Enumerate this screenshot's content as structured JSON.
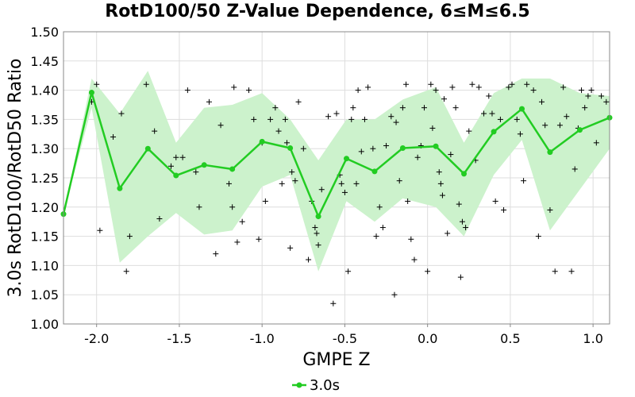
{
  "chart_data": {
    "type": "line",
    "title": "RotD100/50 Z-Value Dependence, 6≤M≤6.5",
    "xlabel": "GMPE Z",
    "ylabel": "3.0s RotD100/RotD50 Ratio",
    "xlim": [
      -2.2,
      1.1
    ],
    "ylim": [
      1.0,
      1.5
    ],
    "xticks": [
      -2.0,
      -1.5,
      -1.0,
      -0.5,
      0.0,
      0.5,
      1.0
    ],
    "xtick_labels": [
      "-2.0",
      "-1.5",
      "-1.0",
      "-0.5",
      "0.0",
      "0.5",
      "1.0"
    ],
    "yticks": [
      1.0,
      1.05,
      1.1,
      1.15,
      1.2,
      1.25,
      1.3,
      1.35,
      1.4,
      1.45,
      1.5
    ],
    "ytick_labels": [
      "1.00",
      "1.05",
      "1.10",
      "1.15",
      "1.20",
      "1.25",
      "1.30",
      "1.35",
      "1.40",
      "1.45",
      "1.50"
    ],
    "grid": true,
    "legend": "bottom-center",
    "colors": {
      "series": "#22cc22",
      "band": "#ccf2cc",
      "scatter": "#000000",
      "grid": "#dddddd"
    },
    "series": [
      {
        "name": "3.0s",
        "x": [
          -2.2,
          -2.03,
          -1.86,
          -1.69,
          -1.52,
          -1.35,
          -1.18,
          -1.0,
          -0.83,
          -0.66,
          -0.49,
          -0.32,
          -0.15,
          0.05,
          0.22,
          0.4,
          0.57,
          0.74,
          0.92,
          1.1
        ],
        "y": [
          1.188,
          1.396,
          1.232,
          1.3,
          1.254,
          1.272,
          1.265,
          1.312,
          1.301,
          1.184,
          1.283,
          1.261,
          1.301,
          1.304,
          1.257,
          1.329,
          1.368,
          1.294,
          1.332,
          1.353
        ]
      }
    ],
    "band": {
      "upper": [
        1.188,
        1.42,
        1.36,
        1.433,
        1.31,
        1.37,
        1.375,
        1.395,
        1.35,
        1.28,
        1.35,
        1.35,
        1.384,
        1.405,
        1.31,
        1.395,
        1.42,
        1.42,
        1.395,
        1.39
      ],
      "lower": [
        1.188,
        1.37,
        1.105,
        1.15,
        1.19,
        1.153,
        1.16,
        1.235,
        1.255,
        1.09,
        1.21,
        1.175,
        1.215,
        1.2,
        1.15,
        1.255,
        1.315,
        1.16,
        1.23,
        1.3
      ]
    },
    "scatter": {
      "x": [
        -2.03,
        -2.0,
        -1.98,
        -1.9,
        -1.85,
        -1.82,
        -1.8,
        -1.7,
        -1.65,
        -1.62,
        -1.55,
        -1.52,
        -1.48,
        -1.45,
        -1.4,
        -1.38,
        -1.32,
        -1.28,
        -1.25,
        -1.2,
        -1.18,
        -1.17,
        -1.15,
        -1.12,
        -1.08,
        -1.05,
        -1.02,
        -1.0,
        -0.98,
        -0.95,
        -0.92,
        -0.9,
        -0.88,
        -0.86,
        -0.85,
        -0.83,
        -0.82,
        -0.8,
        -0.78,
        -0.75,
        -0.72,
        -0.7,
        -0.68,
        -0.67,
        -0.66,
        -0.64,
        -0.6,
        -0.57,
        -0.55,
        -0.53,
        -0.52,
        -0.5,
        -0.48,
        -0.46,
        -0.45,
        -0.43,
        -0.42,
        -0.4,
        -0.38,
        -0.36,
        -0.33,
        -0.31,
        -0.29,
        -0.27,
        -0.25,
        -0.22,
        -0.2,
        -0.19,
        -0.17,
        -0.15,
        -0.13,
        -0.12,
        -0.1,
        -0.08,
        -0.06,
        -0.04,
        -0.02,
        0.0,
        0.02,
        0.03,
        0.05,
        0.07,
        0.08,
        0.09,
        0.1,
        0.12,
        0.14,
        0.15,
        0.17,
        0.19,
        0.2,
        0.21,
        0.23,
        0.25,
        0.27,
        0.29,
        0.31,
        0.34,
        0.37,
        0.39,
        0.41,
        0.44,
        0.46,
        0.49,
        0.51,
        0.54,
        0.56,
        0.58,
        0.6,
        0.64,
        0.67,
        0.69,
        0.71,
        0.74,
        0.77,
        0.8,
        0.82,
        0.84,
        0.87,
        0.89,
        0.91,
        0.93,
        0.95,
        0.97,
        0.99,
        1.02,
        1.05,
        1.08
      ],
      "y": [
        1.38,
        1.41,
        1.16,
        1.32,
        1.36,
        1.09,
        1.15,
        1.41,
        1.33,
        1.18,
        1.27,
        1.285,
        1.285,
        1.4,
        1.26,
        1.2,
        1.38,
        1.12,
        1.34,
        1.24,
        1.2,
        1.405,
        1.14,
        1.175,
        1.4,
        1.35,
        1.145,
        1.31,
        1.21,
        1.35,
        1.37,
        1.33,
        1.24,
        1.35,
        1.31,
        1.13,
        1.26,
        1.245,
        1.38,
        1.3,
        1.11,
        1.21,
        1.165,
        1.155,
        1.135,
        1.23,
        1.355,
        1.035,
        1.36,
        1.255,
        1.24,
        1.225,
        1.09,
        1.35,
        1.37,
        1.24,
        1.4,
        1.295,
        1.35,
        1.405,
        1.3,
        1.15,
        1.2,
        1.165,
        1.305,
        1.355,
        1.05,
        1.345,
        1.245,
        1.37,
        1.41,
        1.21,
        1.145,
        1.11,
        1.285,
        1.305,
        1.37,
        1.09,
        1.41,
        1.335,
        1.4,
        1.26,
        1.24,
        1.22,
        1.385,
        1.155,
        1.29,
        1.405,
        1.37,
        1.205,
        1.08,
        1.175,
        1.165,
        1.33,
        1.41,
        1.28,
        1.405,
        1.36,
        1.39,
        1.36,
        1.21,
        1.35,
        1.195,
        1.405,
        1.41,
        1.35,
        1.325,
        1.245,
        1.41,
        1.4,
        1.15,
        1.38,
        1.34,
        1.195,
        1.09,
        1.34,
        1.405,
        1.355,
        1.09,
        1.265,
        1.335,
        1.4,
        1.37,
        1.39,
        1.4,
        1.31,
        1.39,
        1.38
      ]
    }
  }
}
